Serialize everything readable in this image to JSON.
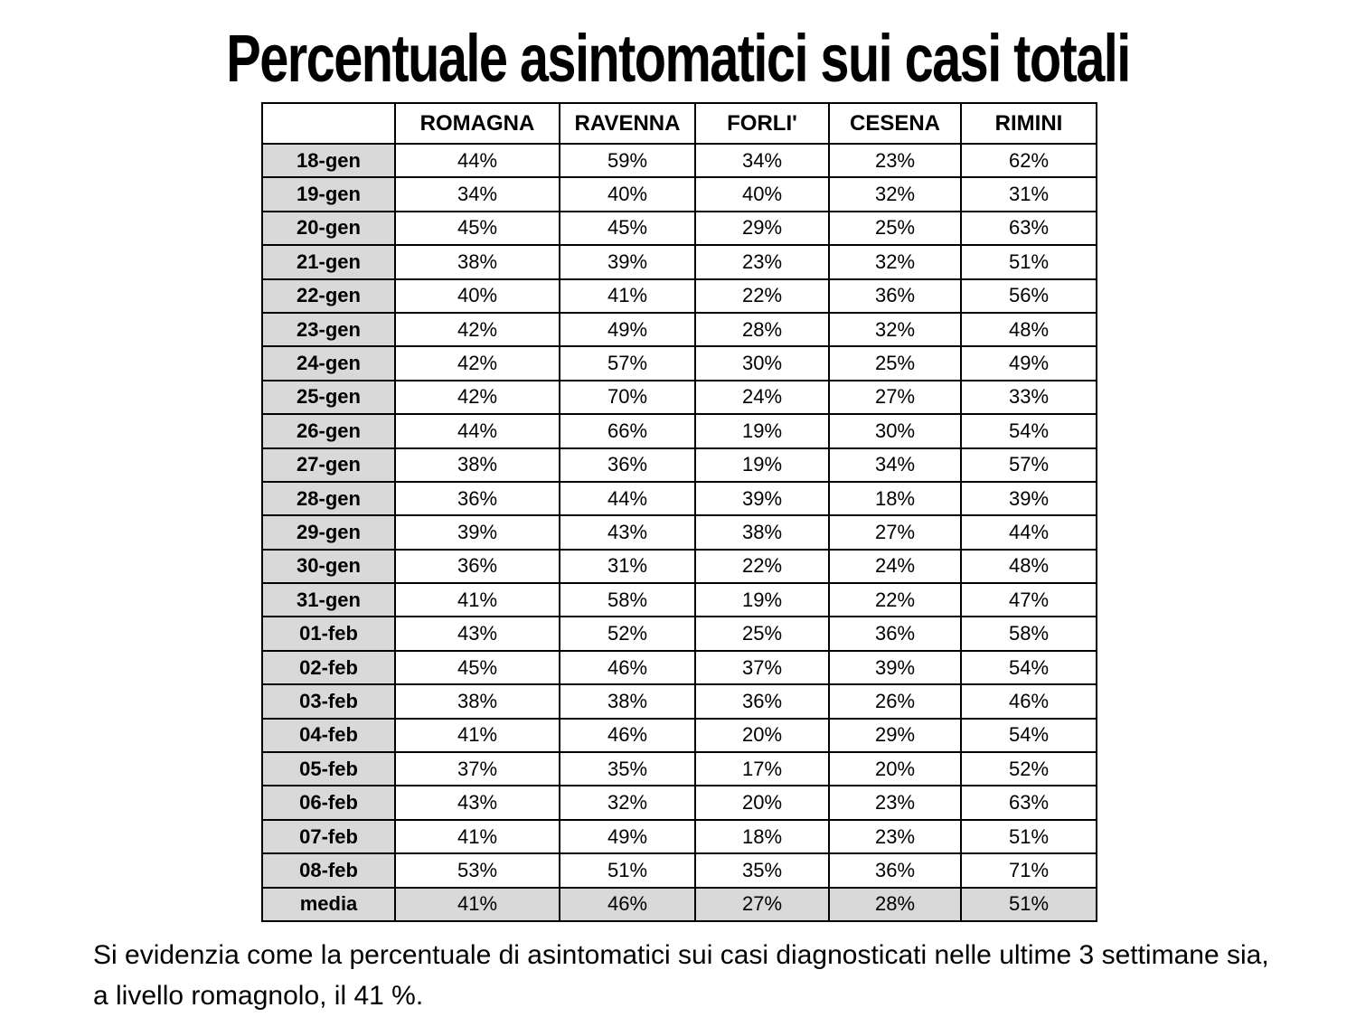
{
  "title": "Percentuale asintomatici sui casi totali",
  "chart_data": {
    "type": "table",
    "columns": [
      "",
      "ROMAGNA",
      "RAVENNA",
      "FORLI'",
      "CESENA",
      "RIMINI"
    ],
    "rows": [
      {
        "label": "18-gen",
        "values": [
          "44%",
          "59%",
          "34%",
          "23%",
          "62%"
        ]
      },
      {
        "label": "19-gen",
        "values": [
          "34%",
          "40%",
          "40%",
          "32%",
          "31%"
        ]
      },
      {
        "label": "20-gen",
        "values": [
          "45%",
          "45%",
          "29%",
          "25%",
          "63%"
        ]
      },
      {
        "label": "21-gen",
        "values": [
          "38%",
          "39%",
          "23%",
          "32%",
          "51%"
        ]
      },
      {
        "label": "22-gen",
        "values": [
          "40%",
          "41%",
          "22%",
          "36%",
          "56%"
        ]
      },
      {
        "label": "23-gen",
        "values": [
          "42%",
          "49%",
          "28%",
          "32%",
          "48%"
        ]
      },
      {
        "label": "24-gen",
        "values": [
          "42%",
          "57%",
          "30%",
          "25%",
          "49%"
        ]
      },
      {
        "label": "25-gen",
        "values": [
          "42%",
          "70%",
          "24%",
          "27%",
          "33%"
        ]
      },
      {
        "label": "26-gen",
        "values": [
          "44%",
          "66%",
          "19%",
          "30%",
          "54%"
        ]
      },
      {
        "label": "27-gen",
        "values": [
          "38%",
          "36%",
          "19%",
          "34%",
          "57%"
        ]
      },
      {
        "label": "28-gen",
        "values": [
          "36%",
          "44%",
          "39%",
          "18%",
          "39%"
        ]
      },
      {
        "label": "29-gen",
        "values": [
          "39%",
          "43%",
          "38%",
          "27%",
          "44%"
        ]
      },
      {
        "label": "30-gen",
        "values": [
          "36%",
          "31%",
          "22%",
          "24%",
          "48%"
        ]
      },
      {
        "label": "31-gen",
        "values": [
          "41%",
          "58%",
          "19%",
          "22%",
          "47%"
        ]
      },
      {
        "label": "01-feb",
        "values": [
          "43%",
          "52%",
          "25%",
          "36%",
          "58%"
        ]
      },
      {
        "label": "02-feb",
        "values": [
          "45%",
          "46%",
          "37%",
          "39%",
          "54%"
        ]
      },
      {
        "label": "03-feb",
        "values": [
          "38%",
          "38%",
          "36%",
          "26%",
          "46%"
        ]
      },
      {
        "label": "04-feb",
        "values": [
          "41%",
          "46%",
          "20%",
          "29%",
          "54%"
        ]
      },
      {
        "label": "05-feb",
        "values": [
          "37%",
          "35%",
          "17%",
          "20%",
          "52%"
        ]
      },
      {
        "label": "06-feb",
        "values": [
          "43%",
          "32%",
          "20%",
          "23%",
          "63%"
        ]
      },
      {
        "label": "07-feb",
        "values": [
          "41%",
          "49%",
          "18%",
          "23%",
          "51%"
        ]
      },
      {
        "label": "08-feb",
        "values": [
          "53%",
          "51%",
          "35%",
          "36%",
          "71%"
        ]
      },
      {
        "label": "media",
        "values": [
          "41%",
          "46%",
          "27%",
          "28%",
          "51%"
        ],
        "highlight": true
      }
    ]
  },
  "footer_note": "Si evidenzia come la percentuale di asintomatici sui casi diagnosticati nelle ultime 3 settimane sia, a livello romagnolo, il 41 %.",
  "colors": {
    "label_column_bg": "#d9d9d9",
    "highlight_row_bg": "#d9d9d9",
    "border": "#000000",
    "text": "#000000",
    "background": "#ffffff"
  }
}
